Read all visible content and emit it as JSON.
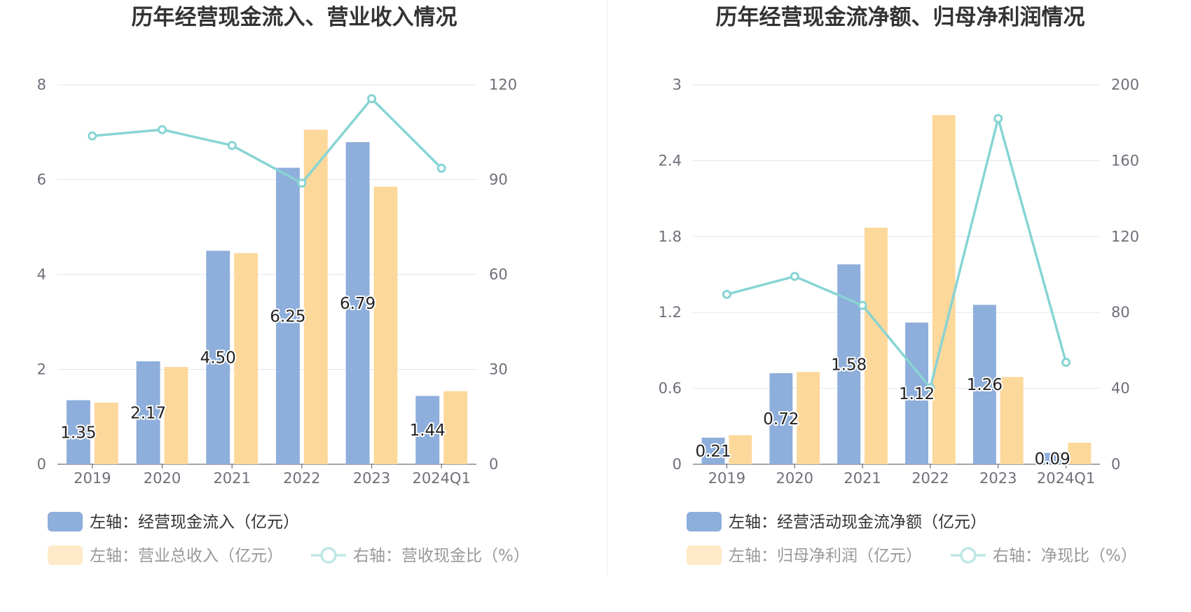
{
  "chart_data": [
    {
      "type": "bar",
      "title": "历年经营现金流入、营业收入情况",
      "categories": [
        "2019",
        "2020",
        "2021",
        "2022",
        "2023",
        "2024Q1"
      ],
      "left_axis": {
        "min": 0,
        "max": 8,
        "ticks": [
          "0",
          "2",
          "4",
          "6",
          "8"
        ]
      },
      "right_axis": {
        "min": 0,
        "max": 120,
        "ticks": [
          "0",
          "30",
          "60",
          "90",
          "120"
        ]
      },
      "grid": true,
      "legend_position": "bottom",
      "series": [
        {
          "name": "左轴：经营现金流入（亿元）",
          "type": "bar",
          "axis": "left",
          "color": "#8eaedb",
          "values": [
            1.35,
            2.17,
            4.5,
            6.25,
            6.79,
            1.44
          ],
          "labels": [
            "1.35",
            "2.17",
            "4.50",
            "6.25",
            "6.79",
            "1.44"
          ]
        },
        {
          "name": "左轴：营业总收入（亿元）",
          "type": "bar",
          "axis": "left",
          "color": "#fdd89b",
          "values": [
            1.3,
            2.05,
            4.45,
            7.05,
            5.85,
            1.54
          ]
        },
        {
          "name": "右轴：营收现金比（%）",
          "type": "line",
          "axis": "right",
          "color": "#88d4d4",
          "values": [
            103.8,
            105.8,
            100.8,
            88.9,
            115.6,
            93.6
          ]
        }
      ]
    },
    {
      "type": "bar",
      "title": "历年经营现金流净额、归母净利润情况",
      "categories": [
        "2019",
        "2020",
        "2021",
        "2022",
        "2023",
        "2024Q1"
      ],
      "left_axis": {
        "min": 0,
        "max": 3,
        "ticks": [
          "0",
          "0.6",
          "1.2",
          "1.8",
          "2.4",
          "3"
        ]
      },
      "right_axis": {
        "min": 0,
        "max": 200,
        "ticks": [
          "0",
          "40",
          "80",
          "120",
          "160",
          "200"
        ]
      },
      "grid": true,
      "legend_position": "bottom",
      "series": [
        {
          "name": "左轴：经营活动现金流净额（亿元）",
          "type": "bar",
          "axis": "left",
          "color": "#8eaedb",
          "values": [
            0.21,
            0.72,
            1.58,
            1.12,
            1.26,
            0.09
          ],
          "labels": [
            "0.21",
            "0.72",
            "1.58",
            "1.12",
            "1.26",
            "0.09"
          ]
        },
        {
          "name": "左轴：归母净利润（亿元）",
          "type": "bar",
          "axis": "left",
          "color": "#fdd89b",
          "values": [
            0.23,
            0.73,
            1.87,
            2.76,
            0.69,
            0.17
          ]
        },
        {
          "name": "右轴：净现比（%）",
          "type": "line",
          "axis": "right",
          "color": "#88d4d4",
          "values": [
            89.5,
            99.0,
            83.7,
            40.3,
            182.2,
            53.7
          ]
        }
      ]
    }
  ]
}
